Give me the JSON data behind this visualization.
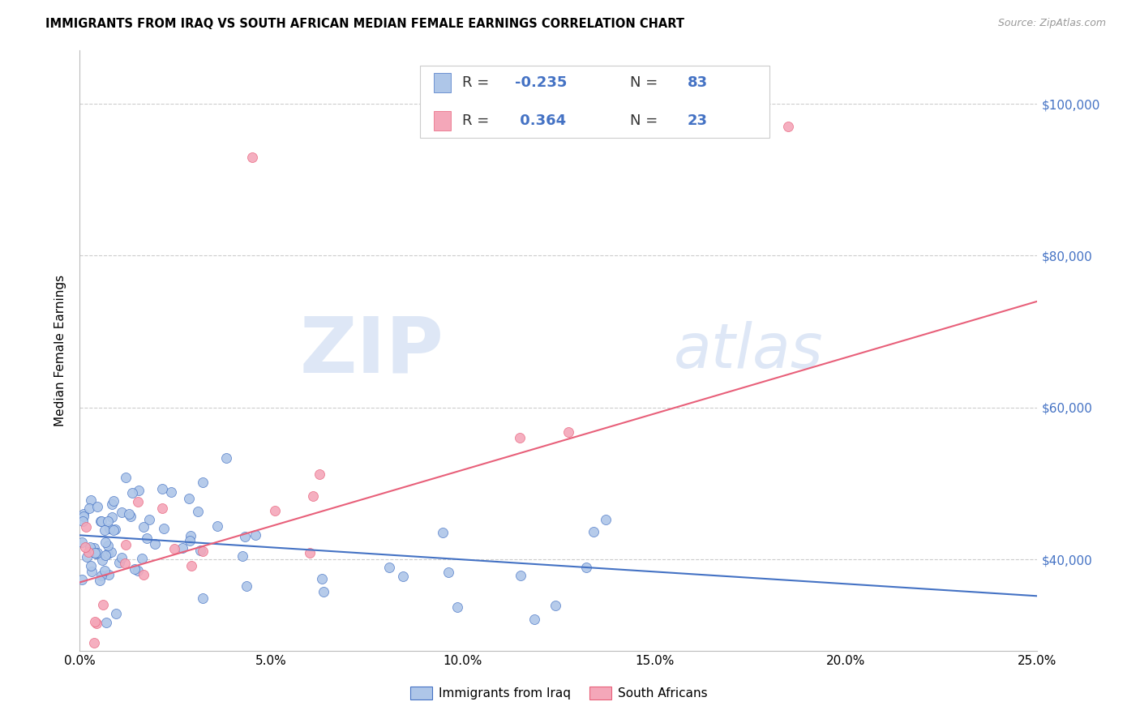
{
  "title": "IMMIGRANTS FROM IRAQ VS SOUTH AFRICAN MEDIAN FEMALE EARNINGS CORRELATION CHART",
  "source": "Source: ZipAtlas.com",
  "ylabel": "Median Female Earnings",
  "y_tick_labels": [
    "$40,000",
    "$60,000",
    "$80,000",
    "$100,000"
  ],
  "y_tick_values": [
    40000,
    60000,
    80000,
    100000
  ],
  "x_tick_labels": [
    "0.0%",
    "5.0%",
    "10.0%",
    "15.0%",
    "20.0%",
    "25.0%"
  ],
  "x_tick_values": [
    0.0,
    5.0,
    10.0,
    15.0,
    20.0,
    25.0
  ],
  "xlim": [
    0.0,
    25.0
  ],
  "ylim": [
    28000,
    107000
  ],
  "legend_label_blue": "Immigrants from Iraq",
  "legend_label_pink": "South Africans",
  "R_blue": -0.235,
  "N_blue": 83,
  "R_pink": 0.364,
  "N_pink": 23,
  "color_blue": "#AEC6E8",
  "color_pink": "#F4A7B9",
  "line_color_blue": "#4472C4",
  "line_color_pink": "#E8607A",
  "watermark_zip": "ZIP",
  "watermark_atlas": "atlas",
  "blue_line_y0": 43200,
  "blue_line_slope": -320,
  "pink_line_y0": 37000,
  "pink_line_slope": 1480
}
